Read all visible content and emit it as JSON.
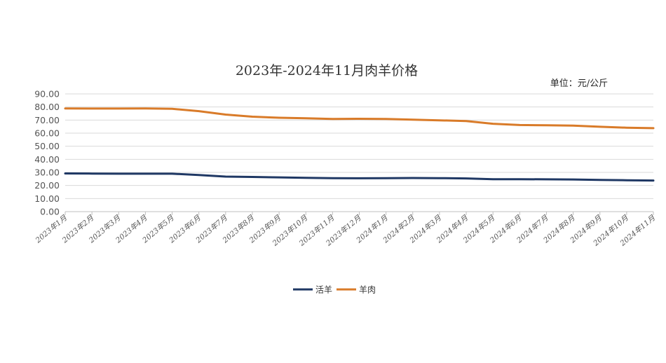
{
  "chart_data": {
    "type": "line",
    "title": "2023年-2024年11月肉羊价格",
    "unit_label": "单位：元/公斤",
    "xlabel": "",
    "ylabel": "",
    "ylim": [
      0,
      90
    ],
    "y_ticks": [
      "0.00",
      "10.00",
      "20.00",
      "30.00",
      "40.00",
      "50.00",
      "60.00",
      "70.00",
      "80.00",
      "90.00"
    ],
    "categories": [
      "2023年1月",
      "2023年2月",
      "2023年3月",
      "2023年4月",
      "2023年5月",
      "2023年6月",
      "2023年7月",
      "2023年8月",
      "2023年9月",
      "2023年10月",
      "2023年11月",
      "2023年12月",
      "2024年1月",
      "2024年2月",
      "2024年3月",
      "2024年4月",
      "2024年5月",
      "2024年6月",
      "2024年7月",
      "2024年8月",
      "2024年9月",
      "2024年10月",
      "2024年11月"
    ],
    "grid": true,
    "legend_position": "bottom",
    "series": [
      {
        "name": "活羊",
        "color": "#1f3864",
        "values": [
          29.2,
          29.1,
          29.0,
          29.0,
          29.0,
          28.0,
          26.8,
          26.5,
          26.2,
          25.9,
          25.6,
          25.5,
          25.6,
          25.7,
          25.6,
          25.4,
          24.8,
          24.8,
          24.7,
          24.6,
          24.2,
          24.0,
          23.8
        ]
      },
      {
        "name": "羊肉",
        "color": "#d97b29",
        "values": [
          78.9,
          78.8,
          78.8,
          78.9,
          78.6,
          76.8,
          74.2,
          72.6,
          71.8,
          71.4,
          70.9,
          71.0,
          70.8,
          70.3,
          69.8,
          69.2,
          67.2,
          66.2,
          66.0,
          65.8,
          64.9,
          64.2,
          63.8
        ]
      }
    ]
  }
}
